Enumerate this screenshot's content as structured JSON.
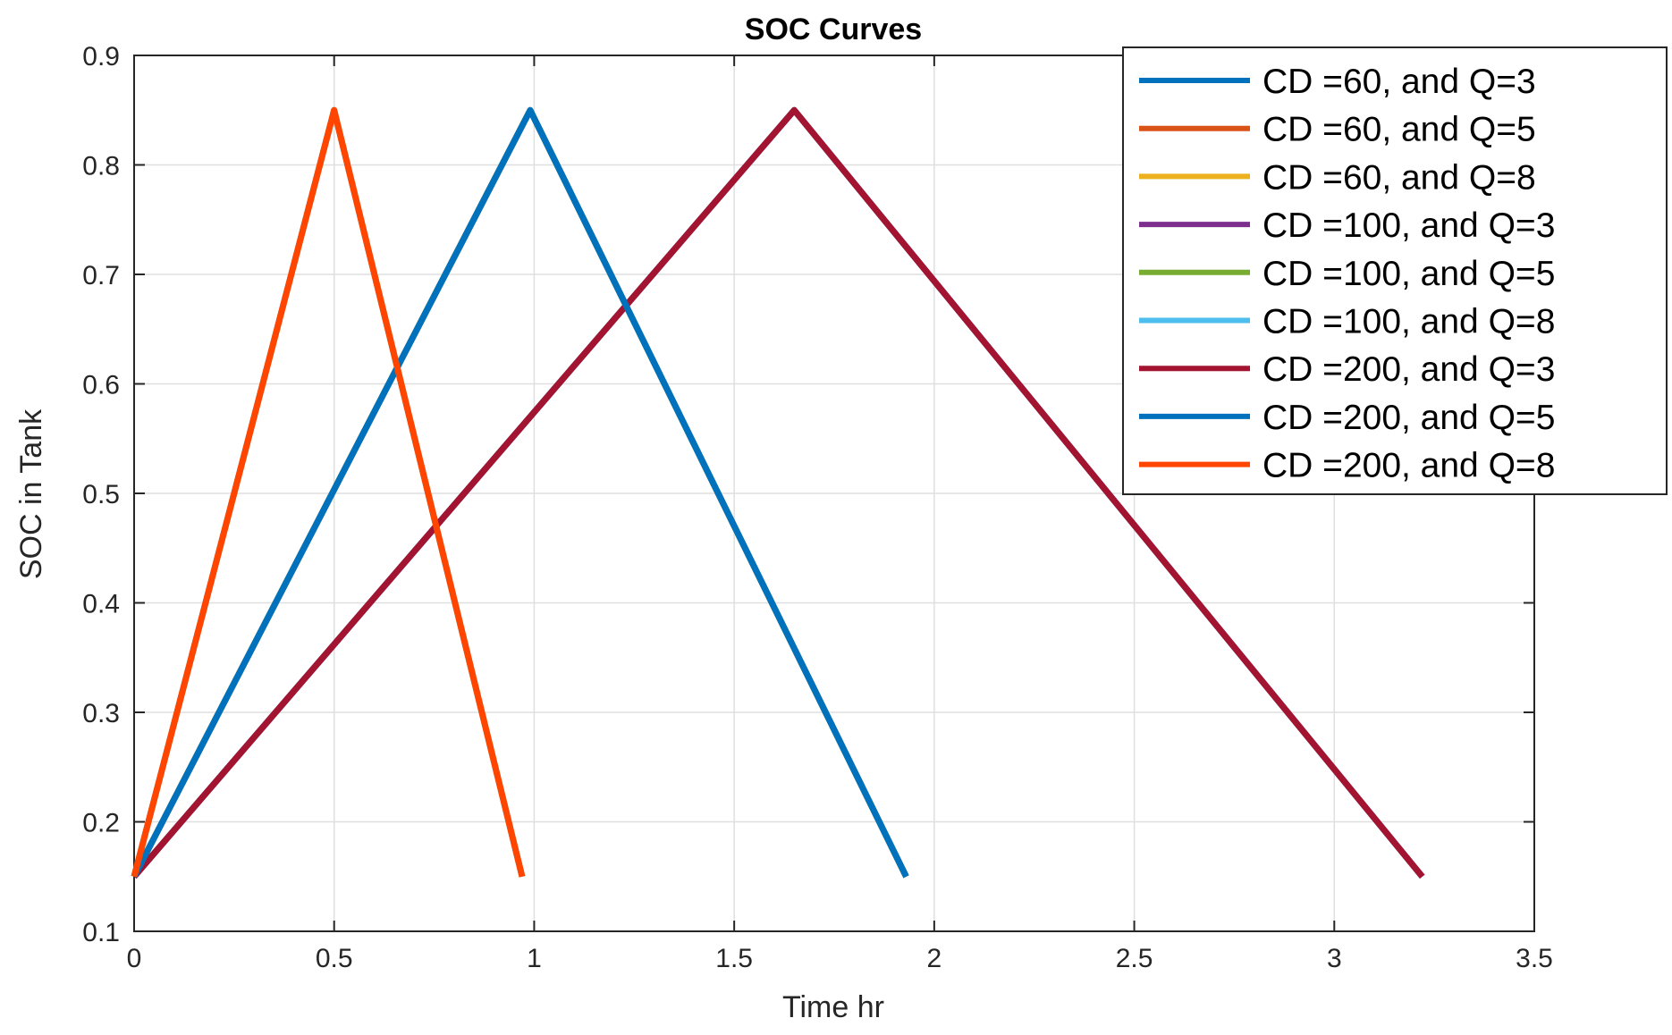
{
  "chart_data": {
    "type": "line",
    "title": "SOC Curves",
    "xlabel": "Time hr",
    "ylabel": "SOC in Tank",
    "xlim": [
      0,
      3.5
    ],
    "ylim": [
      0.1,
      0.9
    ],
    "xticks": [
      0,
      0.5,
      1,
      1.5,
      2,
      2.5,
      3,
      3.5
    ],
    "xtick_labels": [
      "0",
      "0.5",
      "1",
      "1.5",
      "2",
      "2.5",
      "3",
      "3.5"
    ],
    "yticks": [
      0.1,
      0.2,
      0.3,
      0.4,
      0.5,
      0.6,
      0.7,
      0.8,
      0.9
    ],
    "ytick_labels": [
      "0.1",
      "0.2",
      "0.3",
      "0.4",
      "0.5",
      "0.6",
      "0.7",
      "0.8",
      "0.9"
    ],
    "grid": true,
    "legend_position": "top-right",
    "series": [
      {
        "name": "CD =60, and Q=3",
        "color": "#0072BD",
        "x": [
          0,
          1.65,
          3.22
        ],
        "y": [
          0.15,
          0.85,
          0.15
        ]
      },
      {
        "name": "CD =60, and Q=5",
        "color": "#D95319",
        "x": [
          0,
          0.99,
          1.93
        ],
        "y": [
          0.15,
          0.85,
          0.15
        ]
      },
      {
        "name": "CD =60, and Q=8",
        "color": "#EDB120",
        "x": [
          0,
          0.5,
          0.97
        ],
        "y": [
          0.15,
          0.85,
          0.15
        ]
      },
      {
        "name": "CD =100, and Q=3",
        "color": "#7E2F8E",
        "x": [
          0,
          1.65,
          3.22
        ],
        "y": [
          0.15,
          0.85,
          0.15
        ]
      },
      {
        "name": "CD =100, and Q=5",
        "color": "#77AC30",
        "x": [
          0,
          0.99,
          1.93
        ],
        "y": [
          0.15,
          0.85,
          0.15
        ]
      },
      {
        "name": "CD =100, and Q=8",
        "color": "#4DBEEE",
        "x": [
          0,
          0.5,
          0.97
        ],
        "y": [
          0.15,
          0.85,
          0.15
        ]
      },
      {
        "name": "CD =200, and Q=3",
        "color": "#A2142F",
        "x": [
          0,
          1.65,
          3.22
        ],
        "y": [
          0.15,
          0.85,
          0.15
        ]
      },
      {
        "name": "CD =200, and Q=5",
        "color": "#0072BD",
        "x": [
          0,
          0.99,
          1.93
        ],
        "y": [
          0.15,
          0.85,
          0.15
        ]
      },
      {
        "name": "CD =200, and Q=8",
        "color": "#FF4500",
        "x": [
          0,
          0.5,
          0.97
        ],
        "y": [
          0.15,
          0.85,
          0.15
        ]
      }
    ]
  }
}
